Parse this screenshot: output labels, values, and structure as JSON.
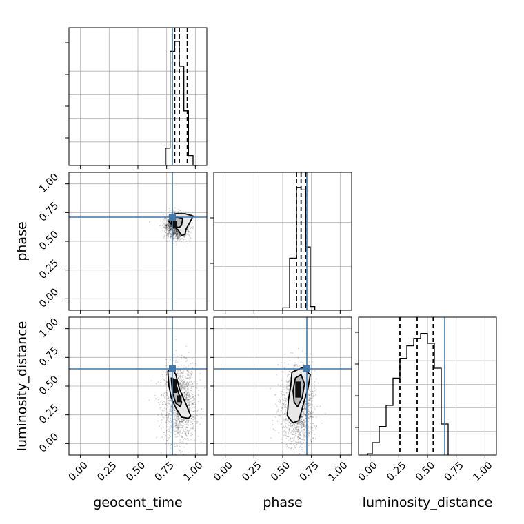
{
  "chart_data": {
    "type": "corner",
    "parameters": [
      "geocent_time",
      "phase",
      "luminosity_distance"
    ],
    "axis_range": [
      -0.1,
      1.1
    ],
    "tick_labels": [
      "0.00",
      "0.25",
      "0.50",
      "0.75",
      "1.00"
    ],
    "tick_values": [
      0,
      0.25,
      0.5,
      0.75,
      1.0
    ],
    "grid": true,
    "truths": {
      "geocent_time": 0.8,
      "phase": 0.71,
      "luminosity_distance": 0.65
    },
    "quantiles": {
      "geocent_time": [
        0.82,
        0.86,
        0.93
      ],
      "phase": [
        0.62,
        0.66,
        0.7
      ],
      "luminosity_distance": [
        0.26,
        0.41,
        0.55
      ]
    },
    "histograms": {
      "geocent_time": {
        "edges": [
          0.74,
          0.78,
          0.82,
          0.86,
          0.9,
          0.94,
          0.98,
          1.02
        ],
        "counts": [
          0.14,
          0.92,
          1.0,
          0.8,
          0.44,
          0.08,
          0.0
        ]
      },
      "phase": {
        "edges": [
          0.5,
          0.56,
          0.62,
          0.66,
          0.7,
          0.74,
          0.78
        ],
        "counts": [
          0.02,
          0.42,
          0.99,
          0.97,
          0.51,
          0.03
        ]
      },
      "luminosity_distance": {
        "edges": [
          -0.02,
          0.02,
          0.08,
          0.14,
          0.2,
          0.26,
          0.32,
          0.38,
          0.44,
          0.5,
          0.56,
          0.62,
          0.68
        ],
        "counts": [
          0.01,
          0.1,
          0.23,
          0.4,
          0.62,
          0.78,
          0.88,
          0.94,
          0.98,
          0.9,
          0.7,
          0.25
        ]
      }
    },
    "pairs": [
      {
        "x": "geocent_time",
        "y": "phase",
        "samples_center": [
          0.84,
          0.63
        ],
        "samples_spread": [
          0.05,
          0.05
        ],
        "contours": [
          [
            [
              0.78,
              0.72
            ],
            [
              0.83,
              0.74
            ],
            [
              0.91,
              0.74
            ],
            [
              0.98,
              0.72
            ],
            [
              0.95,
              0.66
            ],
            [
              0.92,
              0.61
            ],
            [
              0.91,
              0.56
            ],
            [
              0.88,
              0.55
            ],
            [
              0.85,
              0.6
            ],
            [
              0.81,
              0.63
            ],
            [
              0.77,
              0.67
            ]
          ],
          [
            [
              0.79,
              0.7
            ],
            [
              0.84,
              0.71
            ],
            [
              0.89,
              0.7
            ],
            [
              0.88,
              0.64
            ],
            [
              0.86,
              0.62
            ],
            [
              0.82,
              0.63
            ],
            [
              0.79,
              0.66
            ]
          ]
        ],
        "core": [
          [
            0.8,
            0.68,
            0.84,
            0.62
          ]
        ]
      },
      {
        "x": "geocent_time",
        "y": "luminosity_distance",
        "samples_center": [
          0.86,
          0.35
        ],
        "samples_spread": [
          0.07,
          0.17
        ],
        "contours": [
          [
            [
              0.76,
              0.63
            ],
            [
              0.8,
              0.65
            ],
            [
              0.83,
              0.6
            ],
            [
              0.86,
              0.48
            ],
            [
              0.92,
              0.34
            ],
            [
              0.96,
              0.24
            ],
            [
              0.94,
              0.22
            ],
            [
              0.88,
              0.23
            ],
            [
              0.83,
              0.31
            ],
            [
              0.79,
              0.4
            ],
            [
              0.77,
              0.5
            ]
          ],
          [
            [
              0.79,
              0.57
            ],
            [
              0.82,
              0.56
            ],
            [
              0.85,
              0.45
            ],
            [
              0.88,
              0.36
            ],
            [
              0.87,
              0.32
            ],
            [
              0.83,
              0.35
            ],
            [
              0.8,
              0.45
            ]
          ]
        ],
        "core": [
          [
            0.8,
            0.56,
            0.84,
            0.44
          ],
          [
            0.84,
            0.42,
            0.88,
            0.36
          ]
        ]
      },
      {
        "x": "phase",
        "y": "luminosity_distance",
        "samples_center": [
          0.63,
          0.32
        ],
        "samples_spread": [
          0.07,
          0.18
        ],
        "contours": [
          [
            [
              0.58,
              0.62
            ],
            [
              0.67,
              0.66
            ],
            [
              0.74,
              0.6
            ],
            [
              0.72,
              0.48
            ],
            [
              0.69,
              0.38
            ],
            [
              0.66,
              0.27
            ],
            [
              0.64,
              0.2
            ],
            [
              0.59,
              0.18
            ],
            [
              0.54,
              0.24
            ],
            [
              0.55,
              0.38
            ],
            [
              0.57,
              0.5
            ]
          ],
          [
            [
              0.61,
              0.57
            ],
            [
              0.66,
              0.6
            ],
            [
              0.69,
              0.52
            ],
            [
              0.67,
              0.4
            ],
            [
              0.63,
              0.32
            ],
            [
              0.6,
              0.36
            ],
            [
              0.59,
              0.46
            ]
          ]
        ],
        "core": [
          [
            0.61,
            0.54,
            0.66,
            0.4
          ]
        ]
      }
    ]
  }
}
